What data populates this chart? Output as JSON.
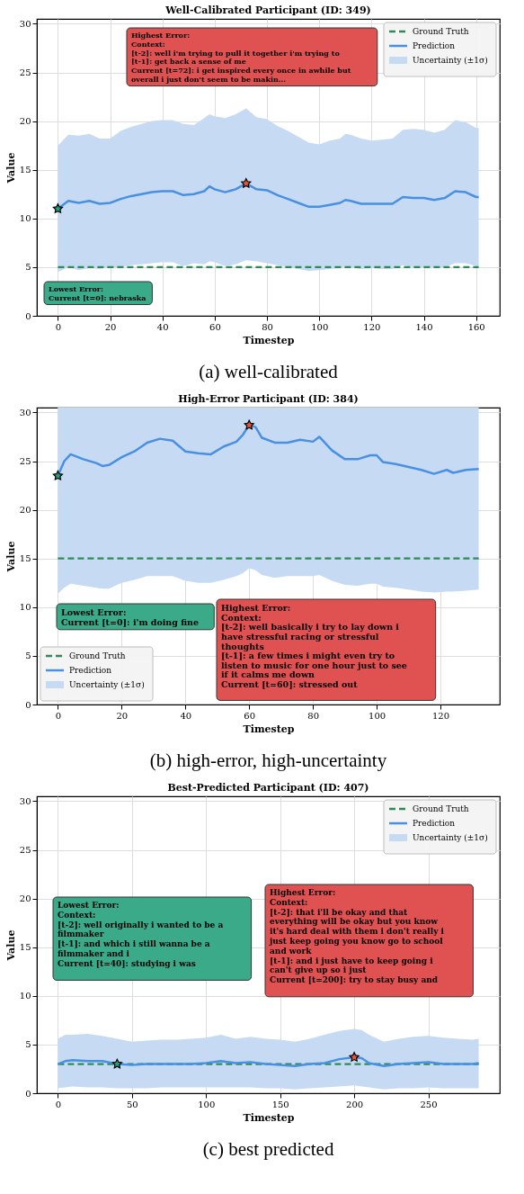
{
  "chart_data": [
    {
      "type": "line",
      "title": "Well-Calibrated Participant (ID: 349)",
      "xlabel": "Timestep",
      "ylabel": "Value",
      "xlim": [
        -8.05,
        169.05
      ],
      "ylim": [
        0,
        30.5
      ],
      "xticks": [
        0,
        20,
        40,
        60,
        80,
        100,
        120,
        140,
        160
      ],
      "yticks": [
        0,
        5,
        10,
        15,
        20,
        25,
        30
      ],
      "grid": true,
      "legend": "top right",
      "series": [
        {
          "name": "Ground Truth",
          "line_style": "dashed",
          "color": "#2e8b57",
          "x": [
            0,
            161
          ],
          "values": [
            5,
            5
          ]
        },
        {
          "name": "Prediction",
          "color": "#4a90e2",
          "x": [
            0,
            4,
            8,
            12,
            16,
            20,
            24,
            28,
            32,
            36,
            40,
            44,
            48,
            52,
            56,
            58,
            60,
            64,
            68,
            72,
            76,
            80,
            84,
            88,
            92,
            96,
            100,
            104,
            108,
            110,
            112,
            116,
            120,
            124,
            128,
            132,
            136,
            140,
            144,
            148,
            152,
            156,
            160,
            161
          ],
          "values": [
            11.0,
            11.8,
            11.6,
            11.8,
            11.5,
            11.6,
            12.0,
            12.3,
            12.5,
            12.7,
            12.8,
            12.8,
            12.4,
            12.5,
            12.8,
            13.3,
            13.0,
            12.7,
            13.0,
            13.6,
            13.0,
            12.9,
            12.4,
            12.0,
            11.6,
            11.2,
            11.2,
            11.4,
            11.6,
            11.9,
            11.8,
            11.5,
            11.5,
            11.5,
            11.5,
            12.2,
            12.1,
            12.1,
            11.9,
            12.1,
            12.8,
            12.7,
            12.2,
            12.2
          ],
          "lower": [
            4.5,
            5.0,
            4.7,
            4.9,
            4.8,
            5.0,
            5.0,
            5.2,
            5.3,
            5.4,
            5.5,
            5.5,
            5.1,
            5.4,
            5.3,
            5.6,
            5.5,
            5.1,
            5.3,
            5.7,
            5.6,
            5.4,
            5.2,
            5.0,
            4.8,
            4.6,
            4.7,
            4.8,
            4.9,
            5.1,
            5.0,
            4.8,
            4.9,
            4.8,
            4.8,
            5.2,
            5.0,
            5.0,
            5.0,
            5.0,
            5.4,
            5.4,
            5.1,
            5.1
          ],
          "upper": [
            17.5,
            18.6,
            18.5,
            18.7,
            18.2,
            18.2,
            19.0,
            19.4,
            19.7,
            20.0,
            20.1,
            20.1,
            19.7,
            19.6,
            20.3,
            20.7,
            20.5,
            20.3,
            20.7,
            21.3,
            20.4,
            20.2,
            19.5,
            19.0,
            18.4,
            17.8,
            17.6,
            18.0,
            18.2,
            18.7,
            18.6,
            18.2,
            18.0,
            18.1,
            18.2,
            19.1,
            19.2,
            19.1,
            18.8,
            19.1,
            20.1,
            19.9,
            19.3,
            19.3
          ]
        },
        {
          "name": "Uncertainty (±1σ)",
          "type": "area",
          "color": "#c6dbf3"
        },
        {
          "type": "scatter",
          "marker": "star",
          "x": [
            0,
            72
          ],
          "values": [
            11.0,
            13.6
          ],
          "colors": [
            "#20a080",
            "#e8543a"
          ]
        }
      ],
      "annotations": [
        "Lowest Error:\nCurrent [t=0]: nebraska",
        "Highest Error:\nContext:\n[t-2]: well i'm trying to pull it together i'm trying to\n[t-1]: get back a sense of me\nCurrent [t=72]: i get inspired every once in awhile but\noverall i just don't seem to be makin...",
        "(a) well-calibrated"
      ]
    },
    {
      "type": "line",
      "title": "High-Error Participant (ID: 384)",
      "xlabel": "Timestep",
      "ylabel": "Value",
      "xlim": [
        -6.6,
        138.6
      ],
      "ylim": [
        0,
        30.5
      ],
      "xticks": [
        0,
        20,
        40,
        60,
        80,
        100,
        120
      ],
      "yticks": [
        0,
        5,
        10,
        15,
        20,
        25,
        30
      ],
      "grid": true,
      "legend": "bottom left",
      "series": [
        {
          "name": "Ground Truth",
          "line_style": "dashed",
          "color": "#2e8b57",
          "x": [
            0,
            132
          ],
          "values": [
            15,
            15
          ]
        },
        {
          "name": "Prediction",
          "color": "#4a90e2",
          "x": [
            0,
            2,
            4,
            8,
            12,
            14,
            16,
            20,
            24,
            28,
            32,
            36,
            40,
            44,
            48,
            52,
            56,
            58,
            60,
            62,
            64,
            68,
            72,
            76,
            80,
            82,
            86,
            90,
            94,
            98,
            100,
            102,
            106,
            110,
            114,
            118,
            122,
            124,
            128,
            132
          ],
          "values": [
            23.5,
            25.0,
            25.7,
            25.2,
            24.8,
            24.5,
            24.6,
            25.4,
            26.0,
            26.9,
            27.3,
            27.1,
            26.0,
            25.8,
            25.7,
            26.5,
            27.0,
            27.7,
            28.7,
            28.5,
            27.4,
            26.9,
            26.9,
            27.2,
            27.0,
            27.5,
            26.1,
            25.2,
            25.2,
            25.6,
            25.6,
            24.9,
            24.7,
            24.4,
            24.1,
            23.7,
            24.1,
            23.8,
            24.1,
            24.2
          ],
          "lower": [
            11.4,
            12.0,
            12.4,
            12.2,
            12.0,
            11.9,
            11.9,
            12.5,
            12.8,
            13.2,
            13.2,
            13.2,
            12.7,
            12.5,
            12.5,
            12.8,
            13.2,
            13.5,
            14.0,
            13.8,
            13.3,
            13.0,
            13.2,
            13.2,
            13.2,
            13.3,
            12.7,
            12.3,
            12.2,
            12.4,
            12.4,
            12.1,
            12.0,
            11.8,
            11.6,
            11.5,
            11.6,
            11.6,
            11.7,
            11.8
          ],
          "upper": [
            30.5,
            30.5,
            30.5,
            30.5,
            30.5,
            30.5,
            30.5,
            30.5,
            30.5,
            30.5,
            30.5,
            30.5,
            30.5,
            30.5,
            30.5,
            30.5,
            30.5,
            30.5,
            30.5,
            30.5,
            30.5,
            30.5,
            30.5,
            30.5,
            30.5,
            30.5,
            30.5,
            30.5,
            30.5,
            30.5,
            30.5,
            30.5,
            30.5,
            30.5,
            30.5,
            30.5,
            30.5,
            30.5,
            30.5,
            30.5
          ]
        },
        {
          "name": "Uncertainty (±1σ)",
          "type": "area",
          "color": "#c6dbf3"
        },
        {
          "type": "scatter",
          "marker": "star",
          "x": [
            0,
            60
          ],
          "values": [
            23.5,
            28.7
          ],
          "colors": [
            "#20a080",
            "#e8543a"
          ]
        }
      ],
      "annotations": [
        "Lowest Error:\nCurrent [t=0]: i'm doing fine",
        "Highest Error:\nContext:\n[t-2]: well basically i try to lay down i\nhave stressful racing or stressful\nthoughts\n[t-1]: a few times i might even try to\nlisten to music for one hour just to see\nif it calms me down\n\nCurrent [t=60]: stressed out",
        "(b) high-error, high-uncertainty"
      ]
    },
    {
      "type": "line",
      "title": "Best-Predicted Participant (ID: 407)",
      "xlabel": "Timestep",
      "ylabel": "Value",
      "xlim": [
        -14.2,
        298.2
      ],
      "ylim": [
        0,
        30.5
      ],
      "xticks": [
        0,
        50,
        100,
        150,
        200,
        250
      ],
      "yticks": [
        0,
        5,
        10,
        15,
        20,
        25,
        30
      ],
      "grid": true,
      "legend": "top right",
      "series": [
        {
          "name": "Ground Truth",
          "line_style": "dashed",
          "color": "#2e8b57",
          "x": [
            0,
            284
          ],
          "values": [
            3,
            3
          ]
        },
        {
          "name": "Prediction",
          "color": "#4a90e2",
          "x": [
            0,
            5,
            10,
            20,
            30,
            40,
            50,
            60,
            70,
            80,
            90,
            100,
            110,
            120,
            130,
            140,
            150,
            160,
            170,
            180,
            190,
            200,
            205,
            210,
            220,
            230,
            240,
            250,
            260,
            270,
            280,
            284
          ],
          "values": [
            3.0,
            3.3,
            3.4,
            3.3,
            3.3,
            3.0,
            2.9,
            3.0,
            3.0,
            3.0,
            3.0,
            3.1,
            3.3,
            3.1,
            3.2,
            3.0,
            2.9,
            2.8,
            3.0,
            3.1,
            3.5,
            3.7,
            3.6,
            3.1,
            2.8,
            3.0,
            3.1,
            3.2,
            3.0,
            3.0,
            3.0,
            3.1
          ],
          "lower": [
            0.5,
            0.6,
            0.7,
            0.6,
            0.6,
            0.5,
            0.5,
            0.5,
            0.6,
            0.6,
            0.6,
            0.6,
            0.6,
            0.6,
            0.6,
            0.5,
            0.5,
            0.4,
            0.5,
            0.6,
            0.7,
            0.8,
            0.7,
            0.6,
            0.4,
            0.5,
            0.5,
            0.6,
            0.5,
            0.5,
            0.5,
            0.5
          ],
          "upper": [
            5.6,
            6.0,
            6.0,
            6.1,
            5.9,
            5.6,
            5.3,
            5.4,
            5.5,
            5.5,
            5.6,
            5.7,
            6.0,
            5.6,
            5.8,
            5.6,
            5.5,
            5.3,
            5.6,
            6.0,
            6.4,
            6.6,
            6.5,
            6.0,
            5.3,
            5.6,
            5.8,
            5.9,
            5.7,
            5.6,
            5.5,
            5.6
          ]
        },
        {
          "name": "Uncertainty (±1σ)",
          "type": "area",
          "color": "#c6dbf3"
        },
        {
          "type": "scatter",
          "marker": "star",
          "x": [
            40,
            200
          ],
          "values": [
            3.0,
            3.7
          ],
          "colors": [
            "#20a080",
            "#e8543a"
          ]
        }
      ],
      "annotations": [
        "Lowest Error:\nContext:\n[t-2]: well originally i wanted to be a\nfilmmaker\n[t-1]: and which i still wanna be a\nfilmmaker and i\n\nCurrent [t=40]: studying i was",
        "Highest Error:\nContext:\n[t-2]: that i'll be okay and that\neverything will be okay but you know\nit's hard deal with them i don't really i\njust keep going you know go to school\nand work\n[t-1]: and i just have to keep going i\ncan't give up so i just\n\nCurrent [t=200]: try to stay busy and",
        "(c) best predicted"
      ]
    }
  ]
}
